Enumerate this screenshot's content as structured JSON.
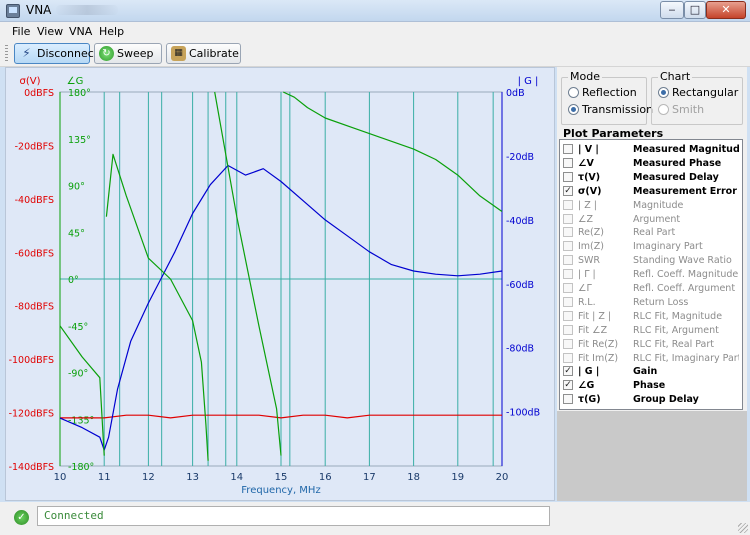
{
  "window": {
    "title": "VNA"
  },
  "menu": [
    "File",
    "View",
    "VNA",
    "Help"
  ],
  "toolbar": {
    "disconnect": "Disconnect",
    "sweep": "Sweep",
    "calibrate": "Calibrate"
  },
  "mode": {
    "label": "Mode",
    "options": [
      "Reflection",
      "Transmission"
    ],
    "selected": "Transmission"
  },
  "chart_type": {
    "label": "Chart",
    "options": [
      "Rectangular",
      "Smith"
    ],
    "selected": "Rectangular"
  },
  "plot_parameters": {
    "title": "Plot Parameters",
    "items": [
      {
        "symbol": "| V |",
        "label": "Measured Magnitude",
        "checked": false,
        "enabled": true
      },
      {
        "symbol": "∠V",
        "label": "Measured Phase",
        "checked": false,
        "enabled": true
      },
      {
        "symbol": "τ(V)",
        "label": "Measured Delay",
        "checked": false,
        "enabled": true
      },
      {
        "symbol": "σ(V)",
        "label": "Measurement Error",
        "checked": true,
        "enabled": true
      },
      {
        "symbol": "| Z |",
        "label": "Magnitude",
        "checked": false,
        "enabled": false
      },
      {
        "symbol": "∠Z",
        "label": "Argument",
        "checked": false,
        "enabled": false
      },
      {
        "symbol": "Re(Z)",
        "label": "Real Part",
        "checked": false,
        "enabled": false
      },
      {
        "symbol": "Im(Z)",
        "label": "Imaginary Part",
        "checked": false,
        "enabled": false
      },
      {
        "symbol": "SWR",
        "label": "Standing Wave Ratio",
        "checked": false,
        "enabled": false
      },
      {
        "symbol": "| Γ |",
        "label": "Refl. Coeff. Magnitude",
        "checked": false,
        "enabled": false
      },
      {
        "symbol": "∠Γ",
        "label": "Refl. Coeff. Argument",
        "checked": false,
        "enabled": false
      },
      {
        "symbol": "R.L.",
        "label": "Return Loss",
        "checked": false,
        "enabled": false
      },
      {
        "symbol": "Fit | Z |",
        "label": "RLC Fit, Magnitude",
        "checked": false,
        "enabled": false
      },
      {
        "symbol": "Fit ∠Z",
        "label": "RLC Fit, Argument",
        "checked": false,
        "enabled": false
      },
      {
        "symbol": "Fit Re(Z)",
        "label": "RLC Fit, Real Part",
        "checked": false,
        "enabled": false
      },
      {
        "symbol": "Fit Im(Z)",
        "label": "RLC Fit, Imaginary Part",
        "checked": false,
        "enabled": false
      },
      {
        "symbol": "| G |",
        "label": "Gain",
        "checked": true,
        "enabled": true
      },
      {
        "symbol": "∠G",
        "label": "Phase",
        "checked": true,
        "enabled": true
      },
      {
        "symbol": "τ(G)",
        "label": "Group Delay",
        "checked": false,
        "enabled": true
      }
    ]
  },
  "status": {
    "text": "Connected"
  },
  "colors": {
    "sigma": "#e00000",
    "phase": "#0aa00a",
    "gain": "#0000d0",
    "grid": "#3aaea6"
  },
  "chart_data": {
    "type": "line",
    "xlabel": "Frequency, MHz",
    "xlim": [
      10,
      20
    ],
    "xticks": [
      "10",
      "11",
      "12",
      "13",
      "14",
      "15",
      "16",
      "17",
      "18",
      "19",
      "20"
    ],
    "vlines_mhz": [
      11.0,
      11.35,
      12.0,
      12.3,
      13.0,
      13.35,
      13.75,
      14.0,
      15.0,
      15.2,
      16.0,
      17.0,
      18.0,
      19.0,
      19.8
    ],
    "axes": {
      "sigma": {
        "label": "σ(V)",
        "range": [
          -140,
          0
        ],
        "ticks": [
          "0dBFS",
          "-20dBFS",
          "-40dBFS",
          "-60dBFS",
          "-80dBFS",
          "-100dBFS",
          "-120dBFS",
          "-140dBFS"
        ]
      },
      "phase": {
        "label": "∠G",
        "range": [
          -180,
          180
        ],
        "ticks": [
          "180°",
          "135°",
          "90°",
          "45°",
          "0°",
          "-45°",
          "-90°",
          "-135°",
          "-180°"
        ]
      },
      "gain": {
        "label": "| G |",
        "range": [
          -117,
          0
        ],
        "ticks": [
          "0dB",
          "-20dB",
          "-40dB",
          "-60dB",
          "-80dB",
          "-100dB"
        ]
      }
    },
    "series": [
      {
        "name": "σ(V)",
        "axis": "sigma",
        "x": [
          10.0,
          10.5,
          11.0,
          11.5,
          12.0,
          12.5,
          13.0,
          13.5,
          14.0,
          14.5,
          15.0,
          15.5,
          16.0,
          16.5,
          17.0,
          17.5,
          18.0,
          18.5,
          19.0,
          19.5,
          20.0
        ],
        "y": [
          -122,
          -122,
          -122,
          -121,
          -121,
          -122,
          -121,
          -121,
          -121,
          -121,
          -122,
          -121,
          -121,
          -122,
          -121,
          -121,
          -121,
          -121,
          -121,
          -121,
          -121
        ]
      },
      {
        "name": "| G |",
        "axis": "gain",
        "x": [
          10.0,
          10.5,
          10.9,
          11.0,
          11.1,
          11.3,
          11.6,
          12.0,
          12.3,
          12.6,
          13.0,
          13.4,
          13.8,
          14.2,
          14.6,
          15.0,
          15.5,
          16.0,
          16.5,
          17.0,
          17.5,
          18.0,
          18.5,
          19.0,
          19.5,
          20.0
        ],
        "y": [
          -102,
          -105,
          -108,
          -112,
          -108,
          -93,
          -78,
          -66,
          -58,
          -50,
          -38,
          -29,
          -23,
          -26,
          -24,
          -28,
          -34,
          -40,
          -45,
          -50,
          -54,
          -56,
          -57,
          -57.5,
          -57,
          -56
        ]
      },
      {
        "name": "∠G",
        "axis": "phase",
        "x": [
          10.0,
          10.5,
          10.9,
          11.0,
          11.05,
          11.2,
          11.5,
          12.0,
          12.5,
          13.0,
          13.2,
          13.3,
          13.35,
          13.5,
          14.0,
          14.5,
          14.9,
          15.0,
          15.05,
          15.3,
          15.6,
          16.0,
          17.0,
          18.0,
          18.5,
          19.0,
          19.5,
          20.0
        ],
        "y": [
          -45,
          -75,
          -95,
          -170,
          60,
          120,
          80,
          20,
          0,
          -40,
          -80,
          -140,
          -175,
          180,
          60,
          -45,
          -125,
          -170,
          180,
          175,
          165,
          155,
          140,
          125,
          115,
          100,
          80,
          65
        ]
      }
    ]
  }
}
